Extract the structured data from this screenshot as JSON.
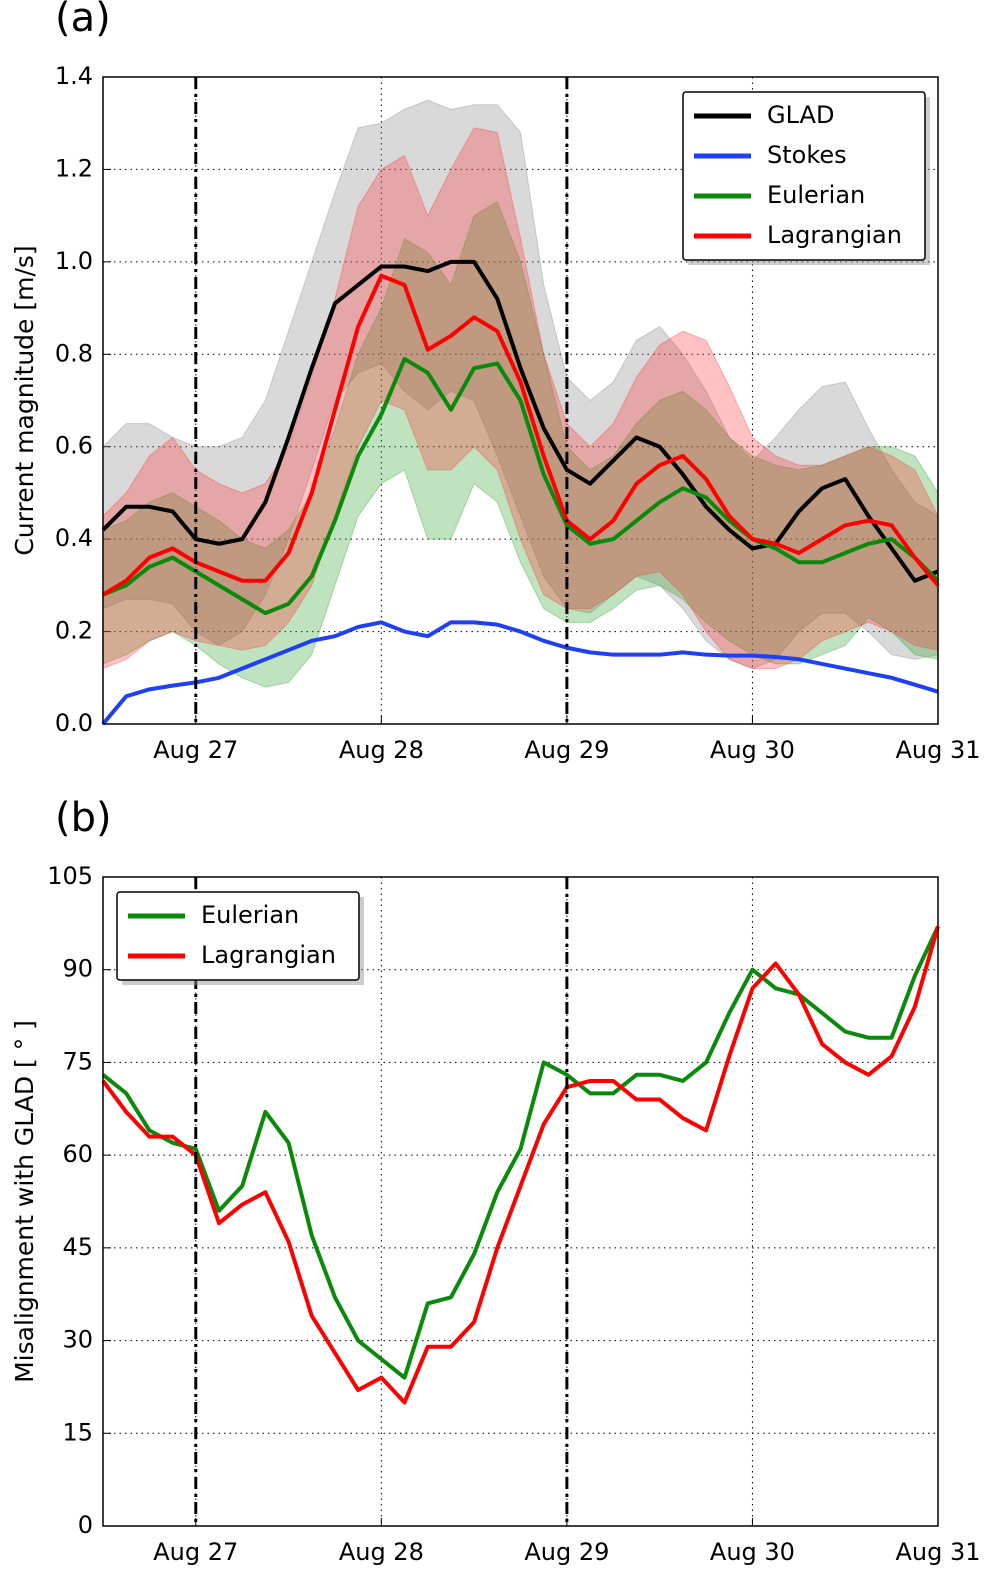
{
  "chart_data": [
    {
      "type": "line",
      "panel_label": "(a)",
      "ylabel": "Current magnitude [m/s]",
      "x": [
        26.5,
        26.625,
        26.75,
        26.875,
        27,
        27.125,
        27.25,
        27.375,
        27.5,
        27.625,
        27.75,
        27.875,
        28,
        28.125,
        28.25,
        28.375,
        28.5,
        28.625,
        28.75,
        28.875,
        29,
        29.125,
        29.25,
        29.375,
        29.5,
        29.625,
        29.75,
        29.875,
        30,
        30.125,
        30.25,
        30.375,
        30.5,
        30.625,
        30.75,
        30.875,
        31
      ],
      "xlim": [
        26.5,
        31
      ],
      "xticks": [
        {
          "value": 27,
          "label": "Aug 27"
        },
        {
          "value": 28,
          "label": "Aug 28"
        },
        {
          "value": 29,
          "label": "Aug 29"
        },
        {
          "value": 30,
          "label": "Aug 30"
        },
        {
          "value": 31,
          "label": "Aug 31"
        }
      ],
      "ylim": [
        0,
        1.4
      ],
      "yticks": [
        {
          "value": 0,
          "label": "0.0"
        },
        0.2,
        0.4,
        0.6,
        0.8,
        {
          "value": 1,
          "label": "1.0"
        },
        1.2,
        1.4
      ],
      "grid": true,
      "legend": "upper right",
      "vlines": [
        27,
        29
      ],
      "series": [
        {
          "name": "GLAD",
          "color": "#000000",
          "band_color": "#808080",
          "values": [
            0.42,
            0.47,
            0.47,
            0.46,
            0.4,
            0.39,
            0.4,
            0.48,
            0.62,
            0.77,
            0.91,
            0.95,
            0.99,
            0.99,
            0.98,
            1.0,
            1.0,
            0.92,
            0.77,
            0.64,
            0.55,
            0.52,
            0.57,
            0.62,
            0.6,
            0.54,
            0.47,
            0.42,
            0.38,
            0.39,
            0.46,
            0.51,
            0.53,
            0.45,
            0.38,
            0.31,
            0.33
          ],
          "upper": [
            0.6,
            0.65,
            0.65,
            0.62,
            0.6,
            0.6,
            0.62,
            0.7,
            0.85,
            1.0,
            1.15,
            1.29,
            1.3,
            1.33,
            1.35,
            1.33,
            1.34,
            1.34,
            1.28,
            0.95,
            0.75,
            0.7,
            0.74,
            0.83,
            0.86,
            0.8,
            0.72,
            0.62,
            0.57,
            0.62,
            0.68,
            0.73,
            0.74,
            0.64,
            0.55,
            0.48,
            0.45
          ],
          "lower": [
            0.25,
            0.27,
            0.27,
            0.26,
            0.2,
            0.17,
            0.2,
            0.28,
            0.4,
            0.55,
            0.7,
            0.76,
            0.78,
            0.72,
            0.68,
            0.72,
            0.7,
            0.58,
            0.45,
            0.32,
            0.25,
            0.24,
            0.28,
            0.32,
            0.3,
            0.25,
            0.18,
            0.14,
            0.12,
            0.14,
            0.2,
            0.24,
            0.24,
            0.2,
            0.15,
            0.14,
            0.15
          ]
        },
        {
          "name": "Stokes",
          "color": "#1f3ff5",
          "values": [
            0.0,
            0.06,
            0.075,
            0.083,
            0.09,
            0.1,
            0.12,
            0.14,
            0.16,
            0.18,
            0.19,
            0.21,
            0.22,
            0.2,
            0.19,
            0.22,
            0.22,
            0.215,
            0.2,
            0.18,
            0.165,
            0.155,
            0.15,
            0.15,
            0.15,
            0.155,
            0.15,
            0.148,
            0.148,
            0.145,
            0.14,
            0.13,
            0.12,
            0.11,
            0.1,
            0.085,
            0.07
          ]
        },
        {
          "name": "Eulerian",
          "color": "#0a8a0a",
          "band_color": "#2ca02c",
          "values": [
            0.28,
            0.3,
            0.34,
            0.36,
            0.33,
            0.3,
            0.27,
            0.24,
            0.26,
            0.32,
            0.44,
            0.58,
            0.67,
            0.79,
            0.76,
            0.68,
            0.77,
            0.78,
            0.7,
            0.54,
            0.43,
            0.39,
            0.4,
            0.44,
            0.48,
            0.51,
            0.49,
            0.44,
            0.4,
            0.38,
            0.35,
            0.35,
            0.37,
            0.39,
            0.4,
            0.36,
            0.31
          ],
          "upper": [
            0.42,
            0.44,
            0.48,
            0.5,
            0.47,
            0.44,
            0.4,
            0.38,
            0.42,
            0.5,
            0.64,
            0.8,
            0.9,
            1.05,
            1.02,
            0.95,
            1.1,
            1.13,
            1.0,
            0.8,
            0.6,
            0.55,
            0.58,
            0.65,
            0.7,
            0.72,
            0.68,
            0.62,
            0.58,
            0.56,
            0.55,
            0.56,
            0.58,
            0.6,
            0.6,
            0.58,
            0.5
          ],
          "lower": [
            0.13,
            0.15,
            0.18,
            0.2,
            0.17,
            0.13,
            0.1,
            0.08,
            0.09,
            0.15,
            0.3,
            0.45,
            0.52,
            0.55,
            0.4,
            0.4,
            0.52,
            0.48,
            0.35,
            0.25,
            0.22,
            0.22,
            0.25,
            0.29,
            0.3,
            0.27,
            0.22,
            0.18,
            0.15,
            0.13,
            0.13,
            0.15,
            0.17,
            0.23,
            0.2,
            0.15,
            0.14
          ]
        },
        {
          "name": "Lagrangian",
          "color": "#ff0000",
          "band_color": "#ff3333",
          "values": [
            0.28,
            0.31,
            0.36,
            0.38,
            0.35,
            0.33,
            0.31,
            0.31,
            0.37,
            0.5,
            0.68,
            0.86,
            0.97,
            0.95,
            0.81,
            0.84,
            0.88,
            0.85,
            0.74,
            0.58,
            0.44,
            0.4,
            0.44,
            0.52,
            0.56,
            0.58,
            0.53,
            0.45,
            0.4,
            0.39,
            0.37,
            0.4,
            0.43,
            0.44,
            0.43,
            0.36,
            0.3
          ],
          "upper": [
            0.45,
            0.5,
            0.58,
            0.62,
            0.55,
            0.52,
            0.5,
            0.52,
            0.6,
            0.75,
            0.92,
            1.12,
            1.2,
            1.23,
            1.1,
            1.2,
            1.29,
            1.28,
            1.05,
            0.8,
            0.65,
            0.6,
            0.65,
            0.75,
            0.82,
            0.85,
            0.83,
            0.73,
            0.62,
            0.58,
            0.56,
            0.56,
            0.58,
            0.6,
            0.58,
            0.55,
            0.45
          ],
          "lower": [
            0.12,
            0.14,
            0.18,
            0.2,
            0.18,
            0.17,
            0.16,
            0.17,
            0.22,
            0.3,
            0.45,
            0.6,
            0.7,
            0.68,
            0.55,
            0.55,
            0.6,
            0.55,
            0.4,
            0.28,
            0.25,
            0.25,
            0.28,
            0.32,
            0.33,
            0.28,
            0.2,
            0.14,
            0.12,
            0.12,
            0.14,
            0.18,
            0.2,
            0.22,
            0.2,
            0.17,
            0.16
          ]
        }
      ]
    },
    {
      "type": "line",
      "panel_label": "(b)",
      "ylabel": "Misalignment with GLAD [ ° ]",
      "x": [
        26.5,
        26.625,
        26.75,
        26.875,
        27,
        27.125,
        27.25,
        27.375,
        27.5,
        27.625,
        27.75,
        27.875,
        28,
        28.125,
        28.25,
        28.375,
        28.5,
        28.625,
        28.75,
        28.875,
        29,
        29.125,
        29.25,
        29.375,
        29.5,
        29.625,
        29.75,
        29.875,
        30,
        30.125,
        30.25,
        30.375,
        30.5,
        30.625,
        30.75,
        30.875,
        31
      ],
      "xlim": [
        26.5,
        31
      ],
      "xticks": [
        {
          "value": 27,
          "label": "Aug 27"
        },
        {
          "value": 28,
          "label": "Aug 28"
        },
        {
          "value": 29,
          "label": "Aug 29"
        },
        {
          "value": 30,
          "label": "Aug 30"
        },
        {
          "value": 31,
          "label": "Aug 31"
        }
      ],
      "ylim": [
        0,
        105
      ],
      "yticks": [
        0,
        15,
        30,
        45,
        60,
        75,
        90,
        105
      ],
      "grid": true,
      "legend": "upper left",
      "vlines": [
        27,
        29
      ],
      "series": [
        {
          "name": "Eulerian",
          "color": "#0a8a0a",
          "values": [
            73,
            70,
            64,
            62,
            61,
            51,
            55,
            67,
            62,
            47,
            37,
            30,
            27,
            24,
            36,
            37,
            44,
            54,
            61,
            75,
            73,
            70,
            70,
            73,
            73,
            72,
            75,
            83,
            90,
            87,
            86,
            83,
            80,
            79,
            79,
            89,
            97
          ]
        },
        {
          "name": "Lagrangian",
          "color": "#ff0000",
          "values": [
            72,
            67,
            63,
            63,
            60,
            49,
            52,
            54,
            46,
            34,
            28,
            22,
            24,
            20,
            29,
            29,
            33,
            45,
            55,
            65,
            71,
            72,
            72,
            69,
            69,
            66,
            64,
            76,
            87,
            91,
            86,
            78,
            75,
            73,
            76,
            84,
            97
          ]
        }
      ]
    }
  ]
}
